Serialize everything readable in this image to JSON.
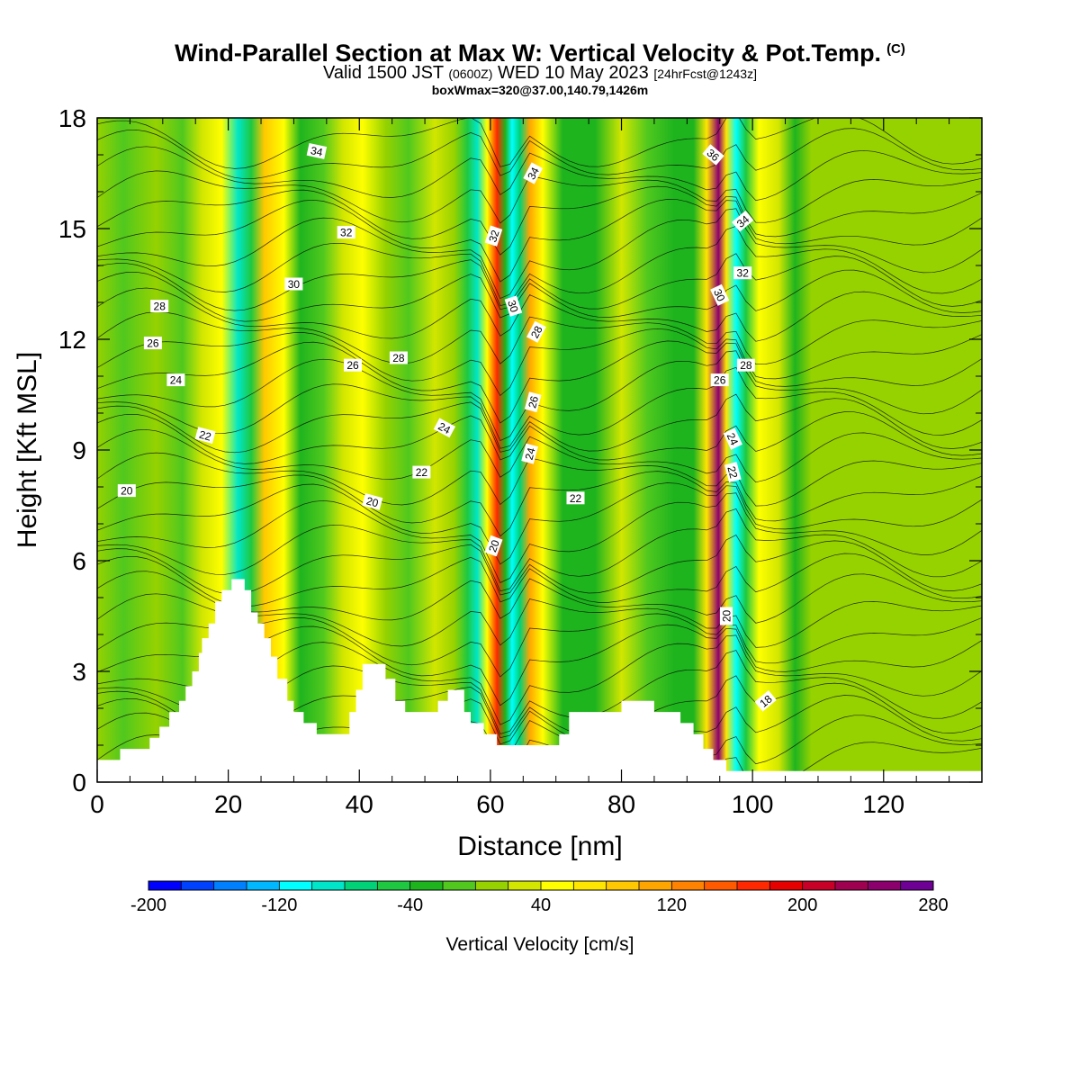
{
  "header": {
    "title": "Wind-Parallel Section at Max W: Vertical Velocity & Pot.Temp.",
    "copyright_mark": "(C)",
    "subtitle_main": "Valid 1500 JST",
    "subtitle_zulu": "(0600Z)",
    "subtitle_date": "WED 10 May 2023",
    "subtitle_forecast": "[24hrFcst@1243z]",
    "subline": "boxWmax=320@37.00,140.79,1426m"
  },
  "chart_data": {
    "type": "heatmap",
    "xlabel": "Distance [nm]",
    "ylabel": "Height [Kft MSL]",
    "xlim": [
      0,
      135
    ],
    "ylim": [
      0,
      18
    ],
    "x_ticks": [
      0,
      20,
      40,
      60,
      80,
      100,
      120
    ],
    "y_ticks": [
      0,
      3,
      6,
      9,
      12,
      15,
      18
    ],
    "grid": false,
    "colorbar": {
      "label": "Vertical Velocity [cm/s]",
      "tick_labels": [
        "-200",
        "-120",
        "-40",
        "40",
        "120",
        "200",
        "280"
      ],
      "tick_values": [
        -200,
        -120,
        -40,
        40,
        120,
        200,
        280
      ],
      "min": -200,
      "max": 280,
      "step": 20,
      "colors": [
        "#0000ff",
        "#0040ff",
        "#0080ff",
        "#00b8ff",
        "#00ffff",
        "#00e6c8",
        "#00d278",
        "#1ec840",
        "#1eb41e",
        "#50c81e",
        "#96d200",
        "#d2e600",
        "#ffff00",
        "#ffe600",
        "#ffc800",
        "#ffa500",
        "#ff8200",
        "#ff5a00",
        "#ff2800",
        "#e60000",
        "#c80028",
        "#a00050",
        "#8c006e",
        "#6e0096"
      ]
    },
    "velocity_bands": [
      {
        "x": 0,
        "w": 0
      },
      {
        "x": 4,
        "w": -20
      },
      {
        "x": 9,
        "w": 10
      },
      {
        "x": 13,
        "w": -10
      },
      {
        "x": 16,
        "w": 30
      },
      {
        "x": 19,
        "w": 40
      },
      {
        "x": 21.5,
        "w": -100
      },
      {
        "x": 23.5,
        "w": -60
      },
      {
        "x": 25.5,
        "w": 90
      },
      {
        "x": 28.5,
        "w": 50
      },
      {
        "x": 31,
        "w": -30
      },
      {
        "x": 34.5,
        "w": -10
      },
      {
        "x": 37.5,
        "w": 30
      },
      {
        "x": 40.5,
        "w": 50
      },
      {
        "x": 44,
        "w": 10
      },
      {
        "x": 47.5,
        "w": -20
      },
      {
        "x": 51.5,
        "w": 20
      },
      {
        "x": 54.5,
        "w": 10
      },
      {
        "x": 56.5,
        "w": -50
      },
      {
        "x": 58,
        "w": -100
      },
      {
        "x": 59.5,
        "w": 40
      },
      {
        "x": 61,
        "w": 160
      },
      {
        "x": 62.3,
        "w": -40
      },
      {
        "x": 63.3,
        "w": -120
      },
      {
        "x": 64.5,
        "w": -80
      },
      {
        "x": 66,
        "w": 110
      },
      {
        "x": 68,
        "w": 50
      },
      {
        "x": 71,
        "w": -30
      },
      {
        "x": 76,
        "w": -40
      },
      {
        "x": 80,
        "w": 20
      },
      {
        "x": 84,
        "w": -10
      },
      {
        "x": 88,
        "w": -40
      },
      {
        "x": 91,
        "w": -30
      },
      {
        "x": 93,
        "w": 60
      },
      {
        "x": 94.8,
        "w": 250
      },
      {
        "x": 96,
        "w": 60
      },
      {
        "x": 97.5,
        "w": -110
      },
      {
        "x": 99,
        "w": -50
      },
      {
        "x": 101,
        "w": 50
      },
      {
        "x": 104,
        "w": 20
      },
      {
        "x": 106.5,
        "w": -30
      },
      {
        "x": 109,
        "w": 10
      },
      {
        "x": 113,
        "w": 0
      },
      {
        "x": 118,
        "w": 15
      },
      {
        "x": 125,
        "w": 0
      },
      {
        "x": 130,
        "w": 10
      },
      {
        "x": 135,
        "w": 0
      }
    ],
    "terrain": [
      [
        0,
        0.6
      ],
      [
        3.5,
        0.6
      ],
      [
        3.5,
        0.9
      ],
      [
        8,
        0.9
      ],
      [
        8,
        1.2
      ],
      [
        9.5,
        1.2
      ],
      [
        9.5,
        1.5
      ],
      [
        11,
        1.5
      ],
      [
        11,
        1.9
      ],
      [
        12.5,
        1.9
      ],
      [
        12.5,
        2.2
      ],
      [
        13.5,
        2.2
      ],
      [
        13.5,
        2.6
      ],
      [
        14.5,
        2.6
      ],
      [
        14.5,
        3.0
      ],
      [
        15.5,
        3.0
      ],
      [
        15.5,
        3.5
      ],
      [
        16,
        3.5
      ],
      [
        16,
        3.9
      ],
      [
        17,
        3.9
      ],
      [
        17,
        4.3
      ],
      [
        18,
        4.3
      ],
      [
        18,
        4.9
      ],
      [
        19,
        4.9
      ],
      [
        19,
        5.2
      ],
      [
        20.5,
        5.2
      ],
      [
        20.5,
        5.5
      ],
      [
        22.5,
        5.5
      ],
      [
        22.5,
        5.2
      ],
      [
        23.5,
        5.2
      ],
      [
        23.5,
        4.6
      ],
      [
        24.5,
        4.6
      ],
      [
        24.5,
        4.3
      ],
      [
        25.5,
        4.3
      ],
      [
        25.5,
        3.9
      ],
      [
        26.5,
        3.9
      ],
      [
        26.5,
        3.4
      ],
      [
        27.5,
        3.4
      ],
      [
        27.5,
        2.8
      ],
      [
        29,
        2.8
      ],
      [
        29,
        2.2
      ],
      [
        30,
        2.2
      ],
      [
        30,
        1.9
      ],
      [
        31.5,
        1.9
      ],
      [
        31.5,
        1.6
      ],
      [
        33.5,
        1.6
      ],
      [
        33.5,
        1.3
      ],
      [
        38.5,
        1.3
      ],
      [
        38.5,
        1.9
      ],
      [
        39.5,
        1.9
      ],
      [
        39.5,
        2.5
      ],
      [
        40.5,
        2.5
      ],
      [
        40.5,
        3.2
      ],
      [
        44,
        3.2
      ],
      [
        44,
        2.8
      ],
      [
        45.5,
        2.8
      ],
      [
        45.5,
        2.2
      ],
      [
        47,
        2.2
      ],
      [
        47,
        1.9
      ],
      [
        52,
        1.9
      ],
      [
        52,
        2.2
      ],
      [
        53.5,
        2.2
      ],
      [
        53.5,
        2.5
      ],
      [
        56,
        2.5
      ],
      [
        56,
        1.9
      ],
      [
        57,
        1.9
      ],
      [
        57,
        1.6
      ],
      [
        59,
        1.6
      ],
      [
        59,
        1.3
      ],
      [
        61,
        1.3
      ],
      [
        61,
        1.0
      ],
      [
        70.5,
        1.0
      ],
      [
        70.5,
        1.3
      ],
      [
        72,
        1.3
      ],
      [
        72,
        1.9
      ],
      [
        80,
        1.9
      ],
      [
        80,
        2.2
      ],
      [
        85,
        2.2
      ],
      [
        85,
        1.9
      ],
      [
        89,
        1.9
      ],
      [
        89,
        1.6
      ],
      [
        91,
        1.6
      ],
      [
        91,
        1.3
      ],
      [
        92.5,
        1.3
      ],
      [
        92.5,
        0.9
      ],
      [
        94,
        0.9
      ],
      [
        94,
        0.6
      ],
      [
        96,
        0.6
      ],
      [
        96,
        0.3
      ],
      [
        103.5,
        0.3
      ],
      [
        103.5,
        0.3
      ],
      [
        135,
        0.3
      ]
    ],
    "theta_labels": [
      {
        "text": "34",
        "x": 33.5,
        "y": 17.1,
        "rot": 12
      },
      {
        "text": "36",
        "x": 94,
        "y": 17.0,
        "rot": 40
      },
      {
        "text": "34",
        "x": 66.5,
        "y": 16.5,
        "rot": -62
      },
      {
        "text": "34",
        "x": 98.5,
        "y": 15.2,
        "rot": -40
      },
      {
        "text": "32",
        "x": 38,
        "y": 14.9,
        "rot": 0
      },
      {
        "text": "32",
        "x": 60.5,
        "y": 14.8,
        "rot": -72
      },
      {
        "text": "32",
        "x": 98.5,
        "y": 13.8,
        "rot": 0
      },
      {
        "text": "30",
        "x": 30,
        "y": 13.5,
        "rot": 0
      },
      {
        "text": "30",
        "x": 95,
        "y": 13.2,
        "rot": 65
      },
      {
        "text": "28",
        "x": 9.5,
        "y": 12.9,
        "rot": 0
      },
      {
        "text": "30",
        "x": 63.5,
        "y": 12.9,
        "rot": 72
      },
      {
        "text": "28",
        "x": 67,
        "y": 12.2,
        "rot": -62
      },
      {
        "text": "26",
        "x": 8.5,
        "y": 11.9,
        "rot": 0
      },
      {
        "text": "28",
        "x": 46,
        "y": 11.5,
        "rot": 0
      },
      {
        "text": "26",
        "x": 39,
        "y": 11.3,
        "rot": 0
      },
      {
        "text": "28",
        "x": 99,
        "y": 11.3,
        "rot": 0
      },
      {
        "text": "24",
        "x": 12,
        "y": 10.9,
        "rot": 0
      },
      {
        "text": "26",
        "x": 95,
        "y": 10.9,
        "rot": 0
      },
      {
        "text": "26",
        "x": 66.5,
        "y": 10.3,
        "rot": -75
      },
      {
        "text": "24",
        "x": 53,
        "y": 9.6,
        "rot": 28
      },
      {
        "text": "22",
        "x": 16.5,
        "y": 9.4,
        "rot": 15
      },
      {
        "text": "24",
        "x": 97,
        "y": 9.3,
        "rot": 65
      },
      {
        "text": "24",
        "x": 66,
        "y": 8.9,
        "rot": -75
      },
      {
        "text": "22",
        "x": 49.5,
        "y": 8.4,
        "rot": 0
      },
      {
        "text": "22",
        "x": 97,
        "y": 8.4,
        "rot": 75
      },
      {
        "text": "20",
        "x": 4.5,
        "y": 7.9,
        "rot": 0
      },
      {
        "text": "22",
        "x": 73,
        "y": 7.7,
        "rot": 0
      },
      {
        "text": "20",
        "x": 42,
        "y": 7.6,
        "rot": 15
      },
      {
        "text": "20",
        "x": 60.5,
        "y": 6.4,
        "rot": -70
      },
      {
        "text": "20",
        "x": 96,
        "y": 4.5,
        "rot": -90
      },
      {
        "text": "18",
        "x": 102,
        "y": 2.2,
        "rot": -40
      }
    ]
  }
}
